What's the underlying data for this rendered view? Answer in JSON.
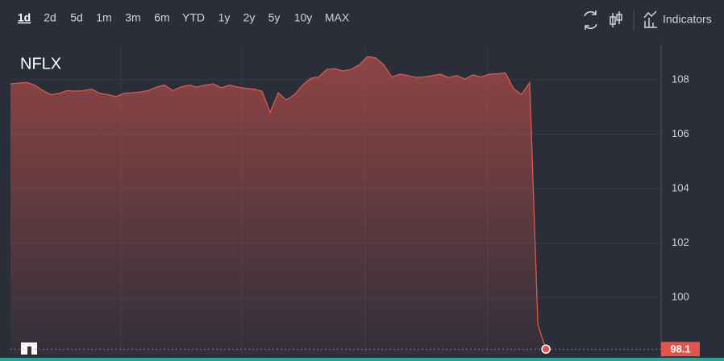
{
  "chart_data": {
    "type": "area",
    "title": "NFLX",
    "ranges": [
      "1d",
      "2d",
      "5d",
      "1m",
      "3m",
      "6m",
      "YTD",
      "1y",
      "2y",
      "5y",
      "10y",
      "MAX"
    ],
    "active_range": "1d",
    "indicators_label": "Indicators",
    "color": "#e0564d",
    "categories": [
      null,
      null,
      null,
      null,
      null,
      null,
      null,
      null,
      null,
      null,
      null,
      null,
      null,
      null,
      null,
      null,
      null,
      null,
      null,
      null,
      null,
      null,
      null,
      null,
      null,
      null,
      null,
      null,
      null,
      null,
      null,
      null,
      null,
      null,
      null,
      null,
      null,
      null,
      null,
      null,
      null,
      null,
      null,
      null,
      null,
      null,
      null,
      null,
      null,
      null,
      null,
      null,
      null,
      null,
      null,
      null,
      null,
      null,
      null,
      null,
      null,
      null,
      null,
      null,
      null,
      null,
      null,
      null,
      null,
      null,
      null,
      null,
      null,
      null,
      null,
      null,
      null,
      null,
      null,
      null,
      null
    ],
    "values": [
      107.85,
      107.88,
      107.9,
      107.8,
      107.6,
      107.45,
      107.5,
      107.6,
      107.58,
      107.6,
      107.65,
      107.5,
      107.45,
      107.38,
      107.5,
      107.52,
      107.55,
      107.6,
      107.73,
      107.8,
      107.6,
      107.73,
      107.8,
      107.73,
      107.8,
      107.85,
      107.7,
      107.8,
      107.73,
      107.68,
      107.65,
      107.58,
      106.8,
      107.52,
      107.25,
      107.45,
      107.8,
      108.05,
      108.1,
      108.38,
      108.4,
      108.32,
      108.38,
      108.55,
      108.85,
      108.8,
      108.55,
      108.1,
      108.2,
      108.15,
      108.08,
      108.1,
      108.15,
      108.2,
      108.08,
      108.15,
      108.02,
      108.18,
      108.1,
      108.2,
      108.22,
      108.25,
      107.68,
      107.45,
      107.9,
      99.0,
      98.1,
      null,
      null,
      null,
      null,
      null,
      null,
      null,
      null,
      null,
      null,
      null,
      null,
      null,
      null
    ],
    "last_price_label": "98.1",
    "ylim": [
      97.9,
      109.3
    ],
    "yticks": [
      100,
      102,
      104,
      106,
      108
    ],
    "grid": true
  }
}
